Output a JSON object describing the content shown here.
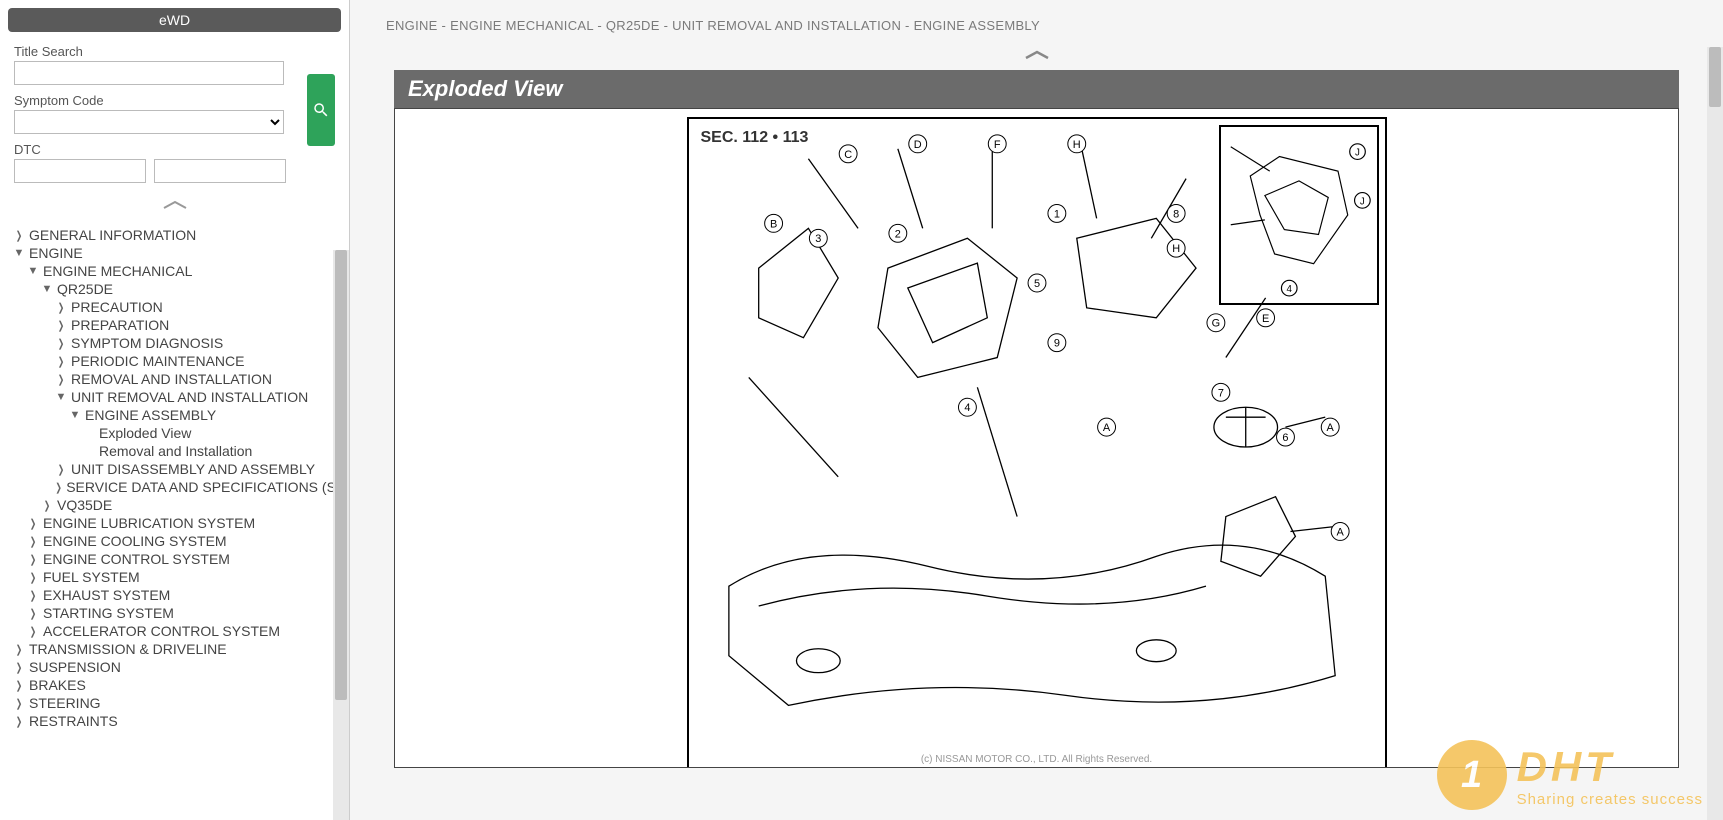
{
  "sidebar": {
    "ewd_label": "eWD",
    "search": {
      "title_label": "Title Search",
      "title_value": "",
      "symptom_label": "Symptom Code",
      "symptom_value": "",
      "dtc_label": "DTC",
      "dtc_value_1": "",
      "dtc_value_2": ""
    },
    "tree": [
      {
        "depth": 0,
        "caret": "right",
        "label": "GENERAL INFORMATION"
      },
      {
        "depth": 0,
        "caret": "down",
        "label": "ENGINE"
      },
      {
        "depth": 1,
        "caret": "down",
        "label": "ENGINE MECHANICAL"
      },
      {
        "depth": 2,
        "caret": "down",
        "label": "QR25DE"
      },
      {
        "depth": 3,
        "caret": "right",
        "label": "PRECAUTION"
      },
      {
        "depth": 3,
        "caret": "right",
        "label": "PREPARATION"
      },
      {
        "depth": 3,
        "caret": "right",
        "label": "SYMPTOM DIAGNOSIS"
      },
      {
        "depth": 3,
        "caret": "right",
        "label": "PERIODIC MAINTENANCE"
      },
      {
        "depth": 3,
        "caret": "right",
        "label": "REMOVAL AND INSTALLATION"
      },
      {
        "depth": 3,
        "caret": "down",
        "label": "UNIT REMOVAL AND INSTALLATION"
      },
      {
        "depth": 4,
        "caret": "down",
        "label": "ENGINE ASSEMBLY"
      },
      {
        "depth": 5,
        "caret": "none",
        "label": "Exploded View"
      },
      {
        "depth": 5,
        "caret": "none",
        "label": "Removal and Installation"
      },
      {
        "depth": 3,
        "caret": "right",
        "label": "UNIT DISASSEMBLY AND ASSEMBLY"
      },
      {
        "depth": 3,
        "caret": "right",
        "label": "SERVICE DATA AND SPECIFICATIONS (SDS)"
      },
      {
        "depth": 2,
        "caret": "right",
        "label": "VQ35DE"
      },
      {
        "depth": 1,
        "caret": "right",
        "label": "ENGINE LUBRICATION SYSTEM"
      },
      {
        "depth": 1,
        "caret": "right",
        "label": "ENGINE COOLING SYSTEM"
      },
      {
        "depth": 1,
        "caret": "right",
        "label": "ENGINE CONTROL SYSTEM"
      },
      {
        "depth": 1,
        "caret": "right",
        "label": "FUEL SYSTEM"
      },
      {
        "depth": 1,
        "caret": "right",
        "label": "EXHAUST SYSTEM"
      },
      {
        "depth": 1,
        "caret": "right",
        "label": "STARTING SYSTEM"
      },
      {
        "depth": 1,
        "caret": "right",
        "label": "ACCELERATOR CONTROL SYSTEM"
      },
      {
        "depth": 0,
        "caret": "right",
        "label": "TRANSMISSION & DRIVELINE"
      },
      {
        "depth": 0,
        "caret": "right",
        "label": "SUSPENSION"
      },
      {
        "depth": 0,
        "caret": "right",
        "label": "BRAKES"
      },
      {
        "depth": 0,
        "caret": "right",
        "label": "STEERING"
      },
      {
        "depth": 0,
        "caret": "right",
        "label": "RESTRAINTS"
      }
    ]
  },
  "content": {
    "breadcrumb": "ENGINE - ENGINE MECHANICAL - QR25DE - UNIT REMOVAL AND INSTALLATION - ENGINE ASSEMBLY",
    "section_title": "Exploded View",
    "diagram": {
      "sec_label": "SEC. 112 • 113",
      "callouts_letter": [
        "A",
        "B",
        "C",
        "D",
        "E",
        "F",
        "G",
        "H",
        "J"
      ],
      "callouts_number": [
        "1",
        "2",
        "3",
        "4",
        "5",
        "6",
        "7",
        "8",
        "9"
      ],
      "copyright": "(c) NISSAN MOTOR CO., LTD. All Rights Reserved.",
      "stroke_color": "#000000",
      "background_color": "#ffffff"
    }
  },
  "watermark": {
    "icon_text": "1",
    "main": "DHT",
    "sub": "Sharing creates success",
    "color": "#f4c35a"
  }
}
